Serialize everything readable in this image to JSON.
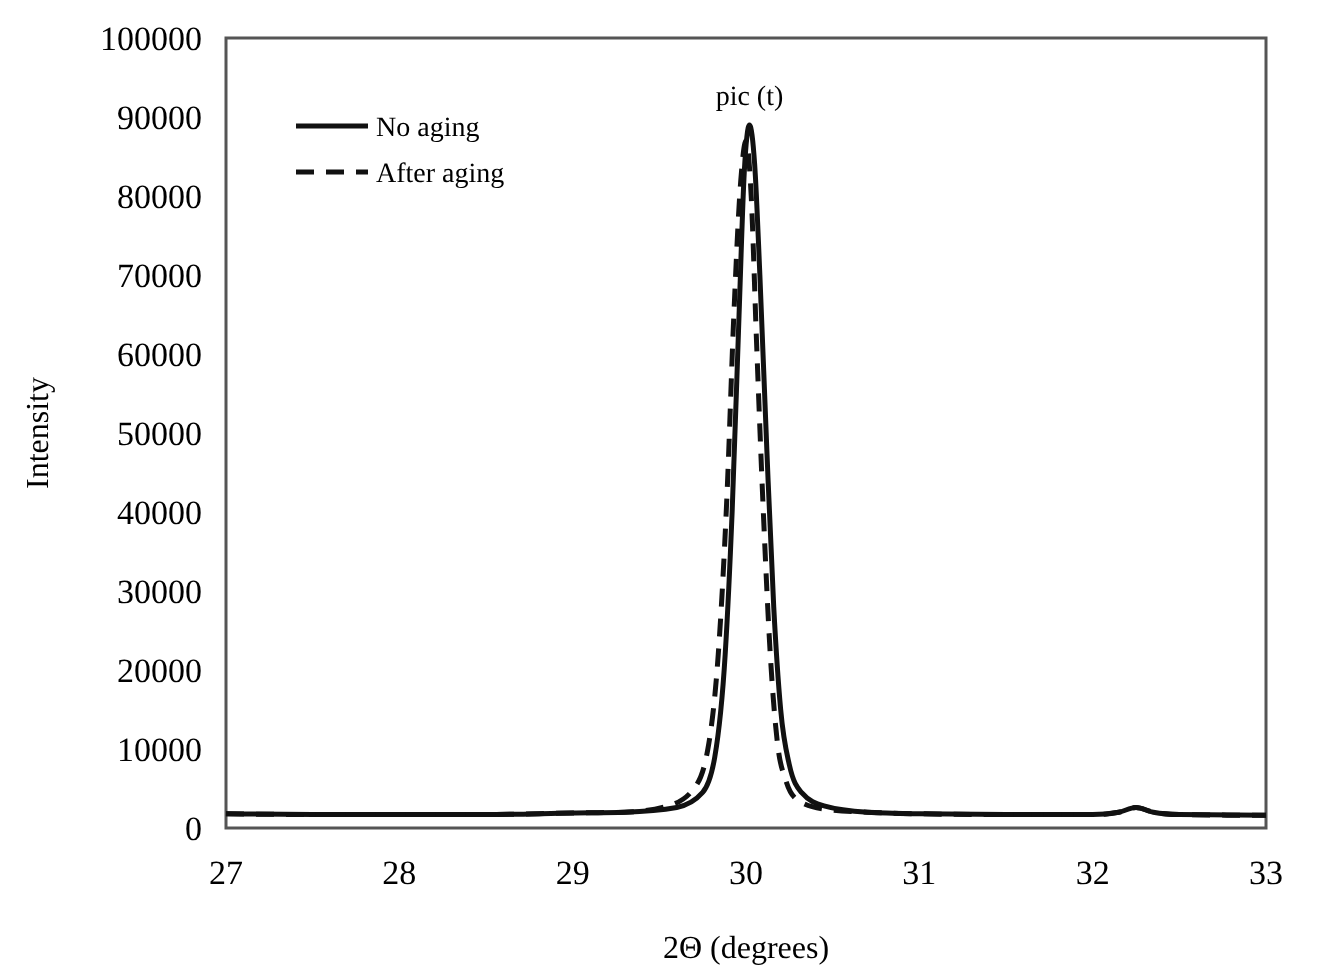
{
  "chart_data": {
    "type": "line",
    "xlabel": "2Θ (degrees)",
    "ylabel": "Intensity",
    "xlim": [
      27,
      33
    ],
    "ylim": [
      0,
      100000
    ],
    "xticks": [
      27,
      28,
      29,
      30,
      31,
      32,
      33
    ],
    "yticks": [
      0,
      10000,
      20000,
      30000,
      40000,
      50000,
      60000,
      70000,
      80000,
      90000,
      100000
    ],
    "grid": false,
    "legend": "top left",
    "marker": "none",
    "annotations": [
      {
        "text": "pic (t)",
        "x": 30.02,
        "y": 89000
      }
    ],
    "series": [
      {
        "name": "No aging",
        "color": "#111111",
        "line_style": "solid",
        "x": [
          27,
          27.5,
          28,
          28.5,
          29,
          29.3,
          29.6,
          29.75,
          29.82,
          29.88,
          29.92,
          29.96,
          29.99,
          30.02,
          30.05,
          30.08,
          30.12,
          30.16,
          30.2,
          30.25,
          30.32,
          30.45,
          30.7,
          31,
          31.5,
          32,
          32.15,
          32.25,
          32.35,
          32.5,
          33
        ],
        "values": [
          1800,
          1700,
          1700,
          1700,
          1900,
          2000,
          2600,
          4500,
          9000,
          22000,
          40000,
          65000,
          83000,
          89000,
          84000,
          70000,
          48000,
          28000,
          15000,
          8000,
          4500,
          2800,
          2000,
          1800,
          1700,
          1700,
          2000,
          2600,
          2000,
          1700,
          1600
        ]
      },
      {
        "name": "After aging",
        "color": "#111111",
        "line_style": "dashed",
        "x": [
          27,
          27.5,
          28,
          28.5,
          29,
          29.3,
          29.55,
          29.7,
          29.78,
          29.84,
          29.89,
          29.93,
          29.97,
          30,
          30.03,
          30.06,
          30.1,
          30.14,
          30.18,
          30.23,
          30.3,
          30.45,
          30.7,
          31,
          31.5,
          32,
          32.15,
          32.25,
          32.35,
          32.5,
          33
        ],
        "values": [
          1800,
          1700,
          1700,
          1700,
          1900,
          2000,
          2800,
          5000,
          10000,
          22000,
          42000,
          65000,
          82000,
          87000,
          80000,
          62000,
          40000,
          22000,
          11000,
          6000,
          3500,
          2400,
          2000,
          1800,
          1700,
          1700,
          2000,
          2600,
          2000,
          1700,
          1600
        ]
      }
    ]
  }
}
